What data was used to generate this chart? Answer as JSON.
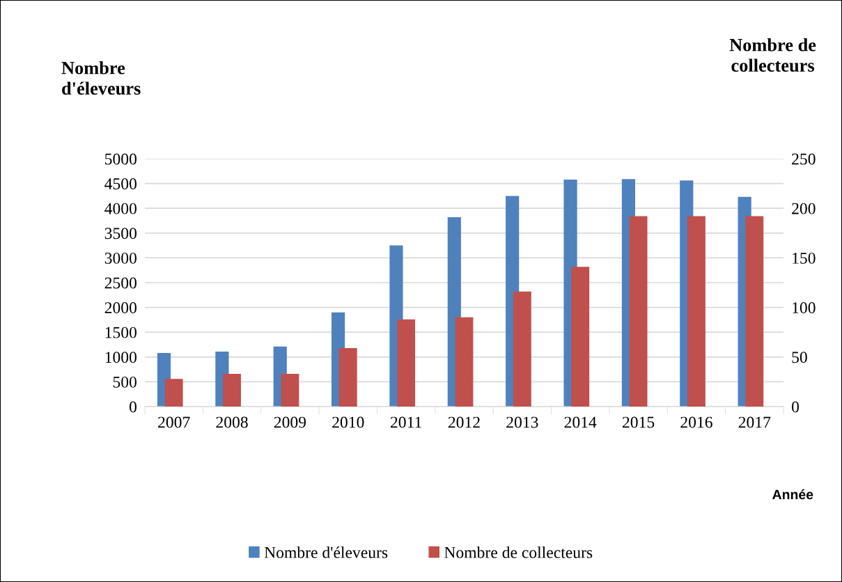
{
  "chart_data": {
    "type": "bar",
    "ylabel": "Nombre\nd'éleveurs",
    "y2label": "Nombre de\ncollecteurs",
    "xlabel": "Année",
    "categories": [
      "2007",
      "2008",
      "2009",
      "2010",
      "2011",
      "2012",
      "2013",
      "2014",
      "2015",
      "2016",
      "2017"
    ],
    "series": [
      {
        "name": "Nombre d'éleveurs",
        "color": "#4f81bd",
        "values": [
          1080,
          1110,
          1210,
          1900,
          3250,
          3820,
          4250,
          4580,
          4590,
          4560,
          4230
        ]
      },
      {
        "name": "Nombre de collecteurs",
        "color": "#c0504d",
        "axis": "y2",
        "values": [
          28,
          33,
          33,
          59,
          88,
          90,
          116,
          141,
          192,
          192,
          192
        ]
      }
    ],
    "ylim": [
      0,
      5000
    ],
    "yticks": [
      0,
      500,
      1000,
      1500,
      2000,
      2500,
      3000,
      3500,
      4000,
      4500,
      5000
    ],
    "y2lim": [
      0,
      250
    ],
    "y2ticks": [
      0,
      50,
      100,
      150,
      200,
      250
    ],
    "grid": "y",
    "legend": "bottom"
  }
}
